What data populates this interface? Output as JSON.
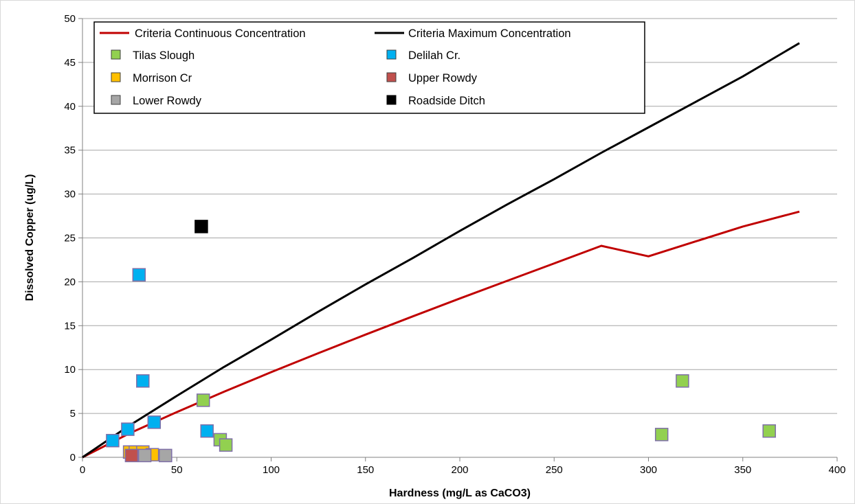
{
  "chart_data": {
    "type": "scatter",
    "title": "",
    "xlabel": "Hardness (mg/L as CaCO3)",
    "ylabel": "Dissolved Copper (ug/L)",
    "xlim": [
      0,
      400
    ],
    "ylim": [
      0,
      50
    ],
    "x_ticks": [
      "0",
      "50",
      "100",
      "150",
      "200",
      "250",
      "300",
      "350",
      "400"
    ],
    "y_ticks": [
      "0",
      "5",
      "10",
      "15",
      "20",
      "25",
      "30",
      "35",
      "40",
      "45",
      "50"
    ],
    "grid": "horizontal",
    "legend_position": "top-left inside plot",
    "lines": [
      {
        "name": "Criteria Continuous Concentration",
        "color": "#c00000",
        "points": [
          [
            0,
            0
          ],
          [
            25,
            2.74
          ],
          [
            50,
            5.16
          ],
          [
            75,
            7.47
          ],
          [
            100,
            9.7
          ],
          [
            125,
            11.86
          ],
          [
            150,
            13.98
          ],
          [
            175,
            16.06
          ],
          [
            200,
            18.1
          ],
          [
            225,
            20.1
          ],
          [
            250,
            22.1
          ],
          [
            275,
            24.1
          ],
          [
            300,
            22.9
          ],
          [
            325,
            24.6
          ],
          [
            350,
            26.3
          ],
          [
            380,
            28.0
          ]
        ]
      },
      {
        "name": "Criteria Maximum Concentration",
        "color": "#000000",
        "points": [
          [
            0,
            0
          ],
          [
            25,
            3.64
          ],
          [
            50,
            7.0
          ],
          [
            75,
            10.3
          ],
          [
            100,
            13.4
          ],
          [
            125,
            16.6
          ],
          [
            150,
            19.7
          ],
          [
            175,
            22.7
          ],
          [
            200,
            25.8
          ],
          [
            225,
            28.8
          ],
          [
            250,
            31.7
          ],
          [
            275,
            34.7
          ],
          [
            300,
            37.6
          ],
          [
            325,
            40.5
          ],
          [
            350,
            43.4
          ],
          [
            380,
            47.2
          ]
        ]
      }
    ],
    "series": [
      {
        "name": "Tilas Slough",
        "color": "#92d050",
        "points": [
          [
            64,
            6.5
          ],
          [
            73,
            2.0
          ],
          [
            76,
            1.4
          ],
          [
            307,
            2.6
          ],
          [
            318,
            8.7
          ],
          [
            364,
            3.0
          ]
        ]
      },
      {
        "name": "Delilah Cr.",
        "color": "#00b0f0",
        "points": [
          [
            16,
            1.9
          ],
          [
            24,
            3.2
          ],
          [
            30,
            20.8
          ],
          [
            32,
            8.7
          ],
          [
            38,
            4.0
          ],
          [
            66,
            3.0
          ]
        ]
      },
      {
        "name": "Morrison Cr",
        "color": "#ffc000",
        "points": [
          [
            25,
            0.6
          ],
          [
            28,
            0.6
          ],
          [
            32,
            0.6
          ],
          [
            37,
            0.3
          ]
        ]
      },
      {
        "name": "Upper Rowdy",
        "color": "#c0504d",
        "points": [
          [
            26,
            0.2
          ]
        ]
      },
      {
        "name": "Lower Rowdy",
        "color": "#a6a6a6",
        "points": [
          [
            33,
            0.2
          ],
          [
            44,
            0.2
          ]
        ]
      },
      {
        "name": "Roadside Ditch",
        "color": "#000000",
        "points": [
          [
            63,
            26.3
          ]
        ]
      }
    ]
  },
  "legend": {
    "ccc": "Criteria Continuous Concentration",
    "cmc": "Criteria Maximum Concentration",
    "tilas": "Tilas Slough",
    "delilah": "Delilah Cr.",
    "morrison": "Morrison Cr",
    "upper_rowdy": "Upper Rowdy",
    "lower_rowdy": "Lower Rowdy",
    "roadside": "Roadside Ditch"
  }
}
